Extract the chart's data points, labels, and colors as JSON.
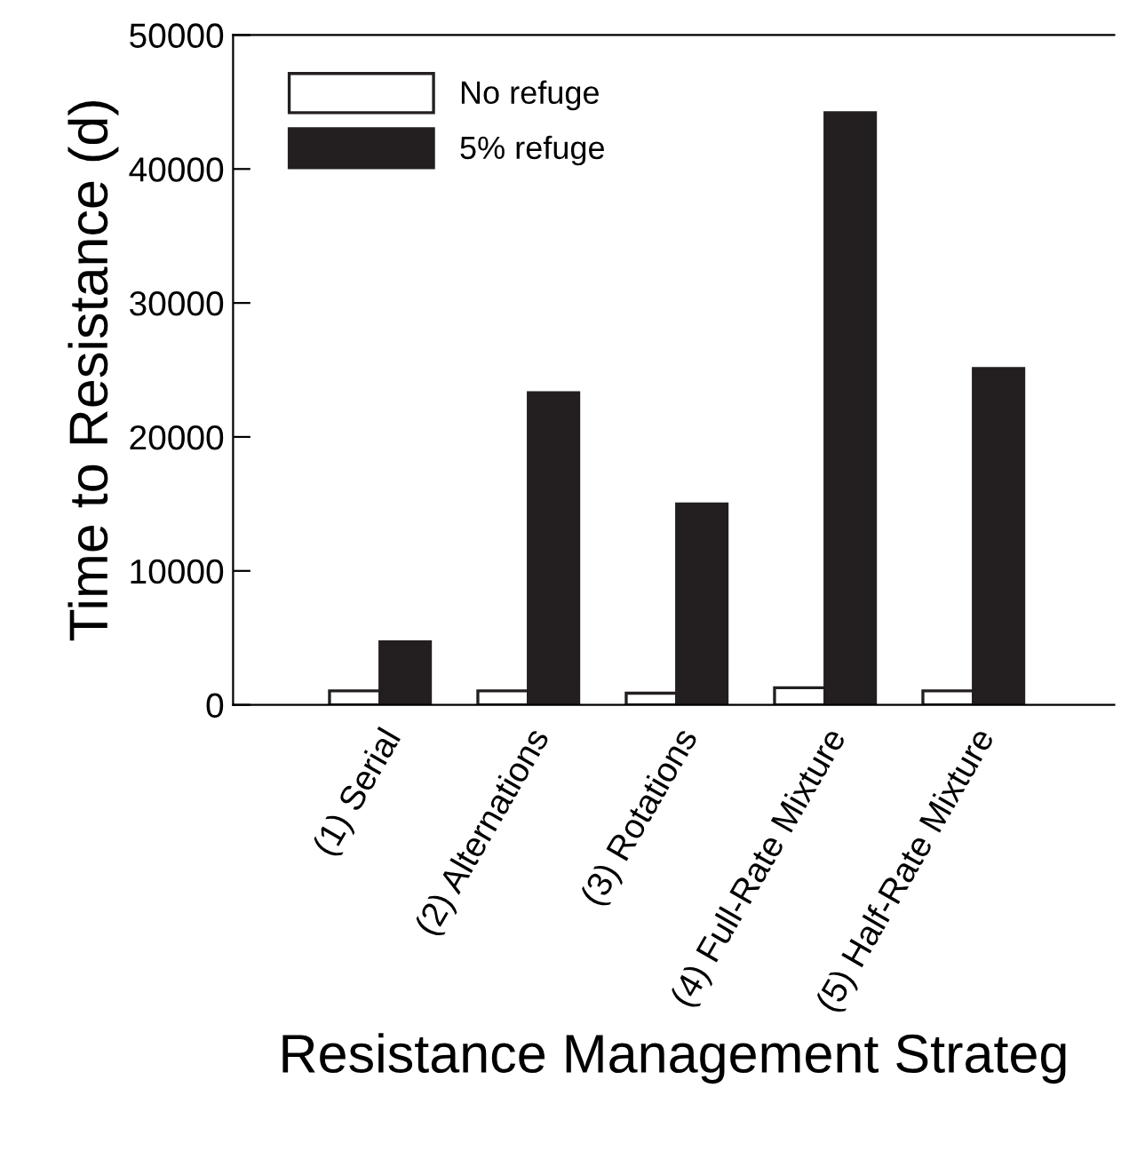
{
  "chart_data": {
    "type": "bar",
    "xlabel": "Resistance Management Strateg",
    "ylabel": "Time to Resistance (d)",
    "categories": [
      "(1) Serial",
      "(2) Alternations",
      "(3) Rotations",
      "(4) Full-Rate Mixture",
      "(5) Half-Rate Mixture"
    ],
    "series": [
      {
        "name": "No refuge",
        "color": "#ffffff",
        "values": [
          1050,
          1050,
          870,
          1280,
          1050
        ]
      },
      {
        "name": "5% refuge",
        "color": "#231f20",
        "values": [
          4700,
          23300,
          15000,
          44200,
          25100
        ]
      }
    ],
    "ylim": [
      0,
      50000
    ],
    "yticks": [
      0,
      10000,
      20000,
      30000,
      40000,
      50000
    ],
    "grid": false,
    "legend": "top left"
  }
}
